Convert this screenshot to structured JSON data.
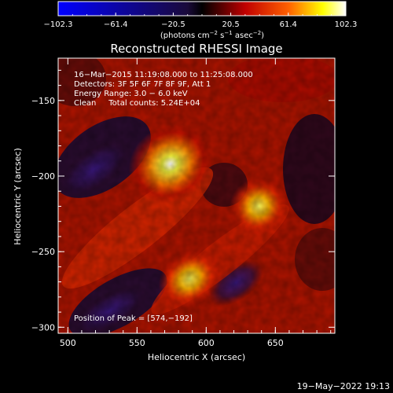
{
  "chart_data": {
    "type": "heatmap",
    "title": "Reconstructed RHESSI Image",
    "xlabel": "Heliocentric X (arcsec)",
    "ylabel": "Heliocentric Y (arcsec)",
    "xlim": [
      493,
      693
    ],
    "ylim": [
      -304,
      -122
    ],
    "x_ticks": [
      500,
      550,
      600,
      650
    ],
    "y_ticks": [
      -150,
      -200,
      -250,
      -300
    ],
    "x_tick_labels": [
      "500",
      "550",
      "600",
      "650"
    ],
    "y_tick_labels": [
      "−150",
      "−200",
      "−250",
      "−300"
    ],
    "colorbar": {
      "min": -102.3,
      "max": 102.3,
      "tick_labels": [
        "−102.3",
        "−61.4",
        "−20.5",
        "20.5",
        "61.4",
        "102.3"
      ],
      "units_html": "(photons cm<tspan dy='-4' font-size='7'>−2</tspan><tspan dy='4'> s</tspan><tspan dy='-4' font-size='7'>−1</tspan><tspan dy='4'> asec</tspan><tspan dy='-4' font-size='7'>−2</tspan><tspan dy='4'>)</tspan>",
      "colors": [
        "#0000ff",
        "#000000",
        "#ff0000",
        "#ffff00",
        "#ffffff"
      ]
    },
    "annotations": [
      "16−Mar−2015 11:19:08.000 to 11:25:08.000",
      "Detectors: 3F 5F 6F 7F 8F 9F, Att 1",
      "Energy Range: 3.0 − 6.0 keV",
      "Clean     Total counts: 5.24E+04"
    ],
    "peak_label": "Position of Peak = [574,−192]",
    "sources": [
      {
        "x": 574,
        "y": -192,
        "value": 102.3
      },
      {
        "x": 638,
        "y": -220,
        "value": 80
      },
      {
        "x": 588,
        "y": -268,
        "value": 85
      }
    ]
  },
  "footer": {
    "timestamp": "19−May−2022 19:13"
  }
}
